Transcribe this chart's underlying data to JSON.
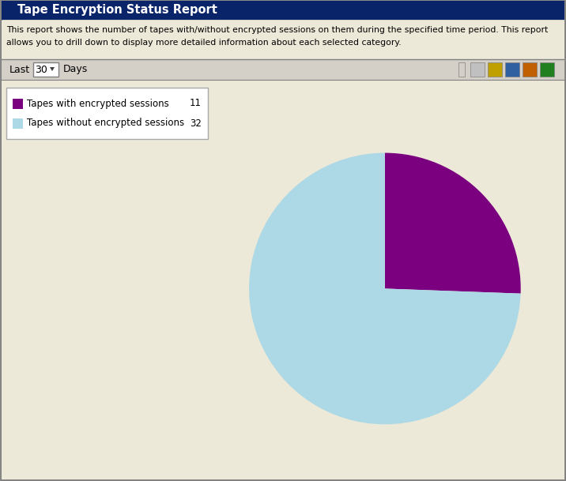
{
  "title": "Tape Encryption Status Report",
  "description_line1": "This report shows the number of tapes with/without encrypted sessions on them during the specified time period. This report",
  "description_line2": "allows you to drill down to display more detailed information about each selected category.",
  "filter_label": "Last",
  "filter_value": "30",
  "filter_unit": "Days",
  "legend": [
    {
      "label": "Tapes with encrypted sessions",
      "value": "11",
      "color": "#7B0080"
    },
    {
      "label": "Tapes without encrypted sessions",
      "value": "32",
      "color": "#ADD8E6"
    }
  ],
  "pie_colors": [
    "#7B0080",
    "#ADD8E6"
  ],
  "pie_values": [
    11,
    32
  ],
  "window_bg": "#D4D0C8",
  "content_bg": "#ECE9D8",
  "title_bar_gradient_left": "#0A246A",
  "title_bar_gradient_right": "#3A6EA5",
  "title_text_color": "#FFFFFF",
  "legend_box_bg": "#FFFFFF",
  "desc_bg": "#ECE9D8",
  "filter_bar_bg": "#ECE9D8",
  "border_color": "#808080"
}
